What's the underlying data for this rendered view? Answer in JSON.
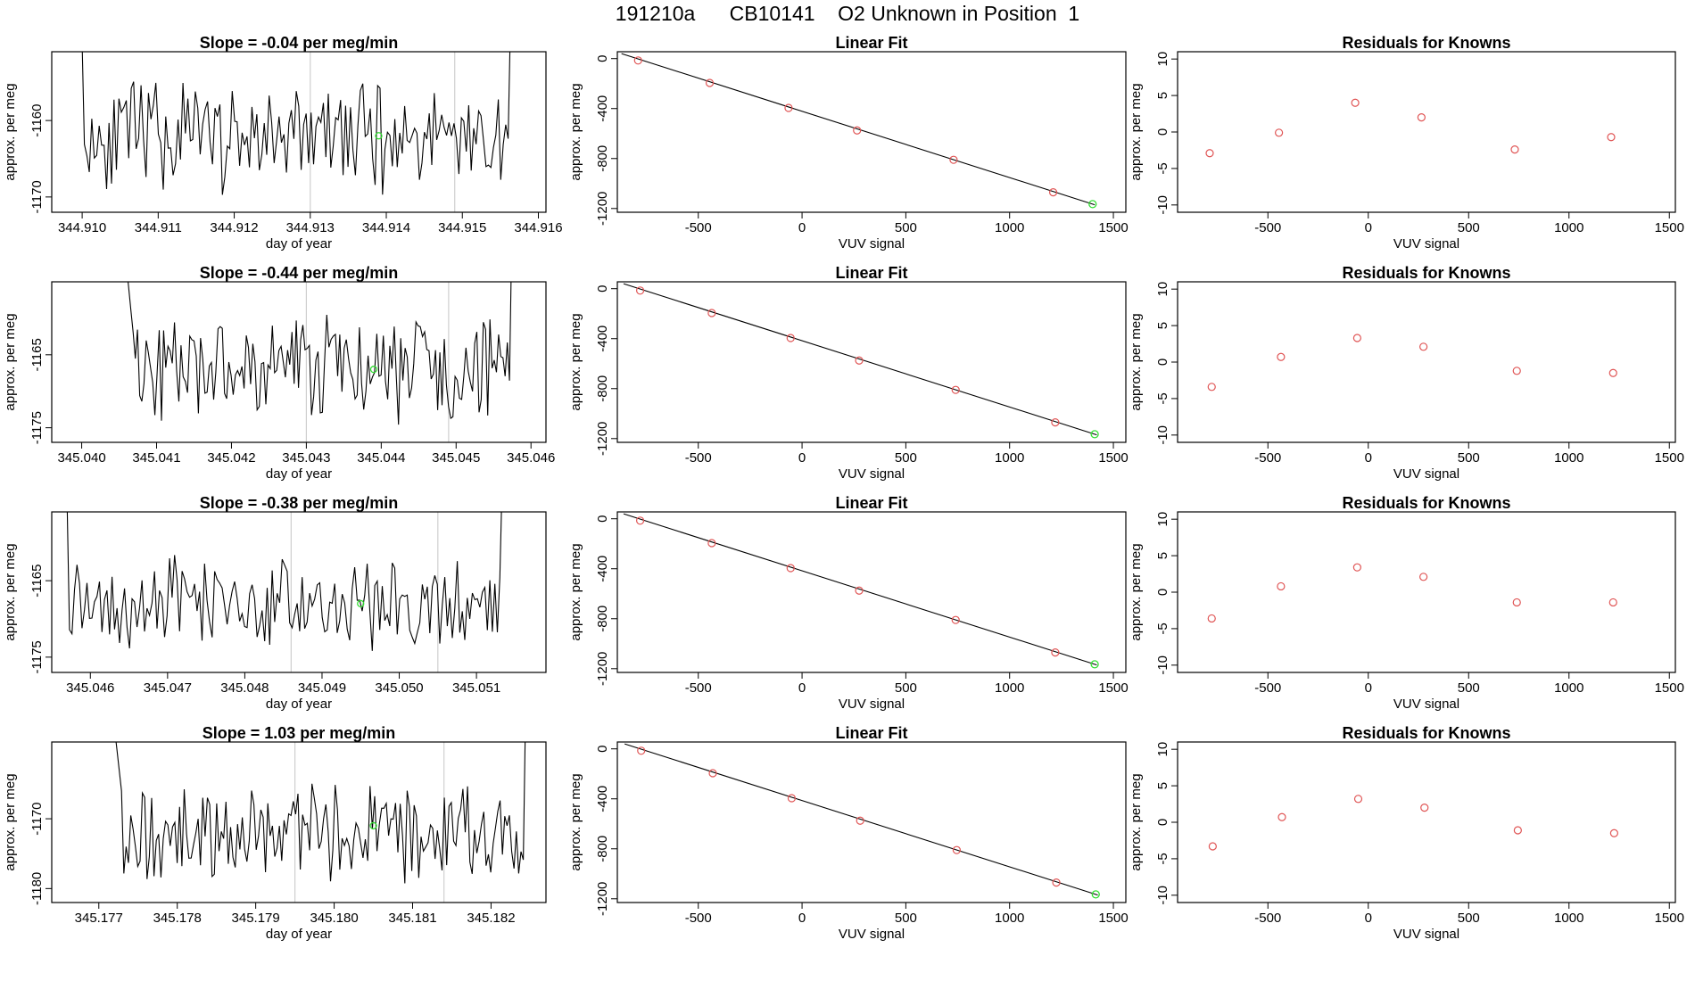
{
  "title": "191210a      CB10141    O2 Unknown in Position  1",
  "colors": {
    "known": "#e05555",
    "unknown": "#33dd33",
    "line": "#000000",
    "marker_line": "#cfcfcf",
    "frame": "#000000"
  },
  "labels": {
    "day_of_year": "day of year",
    "approx_per_meg": "approx. per meg",
    "vuv_signal": "VUV signal",
    "linear_fit": "Linear Fit",
    "residuals": "Residuals for Knowns"
  },
  "chart_data": [
    {
      "type": "line",
      "title": "Slope =  -0.04  per meg/min",
      "xlabel": "day of year",
      "ylabel": "approx. per meg",
      "xlim": [
        344.9096,
        344.9161
      ],
      "ylim": [
        -1172,
        -1151
      ],
      "x_ticks": [
        "344.910",
        "344.911",
        "344.912",
        "344.913",
        "344.914",
        "344.915",
        "344.916"
      ],
      "y_ticks": [
        -1160,
        -1170
      ],
      "x_start": 344.9099,
      "x_end": 344.9157,
      "mean": -1162,
      "amp": 6,
      "seed": 11,
      "markers": [
        344.913,
        344.9149
      ],
      "unknown_point": [
        344.9139,
        -1162
      ]
    },
    {
      "type": "line",
      "title": "Slope =  -0.44  per meg/min",
      "xlabel": "day of year",
      "ylabel": "approx. per meg",
      "xlim": [
        345.0396,
        345.0462
      ],
      "ylim": [
        -1177,
        -1155
      ],
      "x_ticks": [
        "345.040",
        "345.041",
        "345.042",
        "345.043",
        "345.044",
        "345.045",
        "345.046"
      ],
      "y_ticks": [
        -1165,
        -1175
      ],
      "x_start": 345.0406,
      "x_end": 345.0458,
      "mean": -1167,
      "amp": 6,
      "seed": 23,
      "markers": [
        345.043,
        345.0449
      ],
      "unknown_point": [
        345.0439,
        -1167
      ]
    },
    {
      "type": "line",
      "title": "Slope =  -0.38  per meg/min",
      "xlabel": "day of year",
      "ylabel": "approx. per meg",
      "xlim": [
        345.0455,
        345.0519
      ],
      "ylim": [
        -1177,
        -1156
      ],
      "x_ticks": [
        "345.046",
        "345.047",
        "345.048",
        "345.049",
        "345.050",
        "345.051"
      ],
      "y_ticks": [
        -1165,
        -1175
      ],
      "x_start": 345.0456,
      "x_end": 345.0514,
      "mean": -1168,
      "amp": 5,
      "seed": 37,
      "markers": [
        345.0486,
        345.0505
      ],
      "unknown_point": [
        345.0495,
        -1168
      ]
    },
    {
      "type": "line",
      "title": "Slope =  1.03  per meg/min",
      "xlabel": "day of year",
      "ylabel": "approx. per meg",
      "xlim": [
        345.1764,
        345.1827
      ],
      "ylim": [
        -1182,
        -1159
      ],
      "x_ticks": [
        "345.177",
        "345.178",
        "345.179",
        "345.180",
        "345.181",
        "345.182"
      ],
      "y_ticks": [
        -1170,
        -1180
      ],
      "x_start": 345.1772,
      "x_end": 345.1825,
      "mean": -1172,
      "amp": 6,
      "seed": 53,
      "markers": [
        345.1795,
        345.1814
      ],
      "unknown_point": [
        345.1805,
        -1171
      ]
    },
    {
      "type": "scatter",
      "title": "Linear Fit",
      "xlabel": "VUV signal",
      "ylabel": "approx. per meg",
      "xlim": [
        -890,
        1560
      ],
      "ylim": [
        -1230,
        55
      ],
      "x_ticks": [
        -500,
        0,
        500,
        1000,
        1500
      ],
      "y_ticks": [
        0,
        -400,
        -800,
        -1200
      ],
      "known": [
        [
          -790,
          -15
        ],
        [
          -445,
          -195
        ],
        [
          -65,
          -395
        ],
        [
          265,
          -575
        ],
        [
          730,
          -810
        ],
        [
          1210,
          -1070
        ]
      ],
      "unknown": [
        [
          1400,
          -1165
        ]
      ],
      "fit_line": [
        [
          -870,
          40
        ],
        [
          1410,
          -1170
        ]
      ]
    },
    {
      "type": "scatter",
      "title": "Linear Fit",
      "xlabel": "VUV signal",
      "ylabel": "approx. per meg",
      "xlim": [
        -890,
        1560
      ],
      "ylim": [
        -1230,
        55
      ],
      "x_ticks": [
        -500,
        0,
        500,
        1000,
        1500
      ],
      "y_ticks": [
        0,
        -400,
        -800,
        -1200
      ],
      "known": [
        [
          -780,
          -15
        ],
        [
          -435,
          -195
        ],
        [
          -55,
          -395
        ],
        [
          275,
          -575
        ],
        [
          740,
          -810
        ],
        [
          1220,
          -1070
        ]
      ],
      "unknown": [
        [
          1410,
          -1165
        ]
      ],
      "fit_line": [
        [
          -860,
          40
        ],
        [
          1420,
          -1170
        ]
      ]
    },
    {
      "type": "scatter",
      "title": "Linear Fit",
      "xlabel": "VUV signal",
      "ylabel": "approx. per meg",
      "xlim": [
        -890,
        1560
      ],
      "ylim": [
        -1230,
        55
      ],
      "x_ticks": [
        -500,
        0,
        500,
        1000,
        1500
      ],
      "y_ticks": [
        0,
        -400,
        -800,
        -1200
      ],
      "known": [
        [
          -780,
          -15
        ],
        [
          -435,
          -195
        ],
        [
          -55,
          -395
        ],
        [
          275,
          -575
        ],
        [
          740,
          -810
        ],
        [
          1220,
          -1070
        ]
      ],
      "unknown": [
        [
          1410,
          -1165
        ]
      ],
      "fit_line": [
        [
          -860,
          40
        ],
        [
          1420,
          -1170
        ]
      ]
    },
    {
      "type": "scatter",
      "title": "Linear Fit",
      "xlabel": "VUV signal",
      "ylabel": "approx. per meg",
      "xlim": [
        -890,
        1560
      ],
      "ylim": [
        -1230,
        55
      ],
      "x_ticks": [
        -500,
        0,
        500,
        1000,
        1500
      ],
      "y_ticks": [
        0,
        -400,
        -800,
        -1200
      ],
      "known": [
        [
          -775,
          -15
        ],
        [
          -430,
          -195
        ],
        [
          -50,
          -395
        ],
        [
          280,
          -575
        ],
        [
          745,
          -810
        ],
        [
          1225,
          -1070
        ]
      ],
      "unknown": [
        [
          1415,
          -1165
        ]
      ],
      "fit_line": [
        [
          -855,
          40
        ],
        [
          1425,
          -1170
        ]
      ]
    },
    {
      "type": "scatter",
      "title": "Residuals for Knowns",
      "xlabel": "VUV signal",
      "ylabel": "approx. per meg",
      "xlim": [
        -950,
        1530
      ],
      "ylim": [
        -11,
        11
      ],
      "x_ticks": [
        -500,
        0,
        500,
        1000,
        1500
      ],
      "y_ticks": [
        10,
        5,
        0,
        -5,
        -10
      ],
      "known": [
        [
          -790,
          -2.9
        ],
        [
          -445,
          -0.1
        ],
        [
          -65,
          4.0
        ],
        [
          265,
          2.0
        ],
        [
          730,
          -2.4
        ],
        [
          1210,
          -0.7
        ]
      ]
    },
    {
      "type": "scatter",
      "title": "Residuals for Knowns",
      "xlabel": "VUV signal",
      "ylabel": "approx. per meg",
      "xlim": [
        -950,
        1530
      ],
      "ylim": [
        -11,
        11
      ],
      "x_ticks": [
        -500,
        0,
        500,
        1000,
        1500
      ],
      "y_ticks": [
        10,
        5,
        0,
        -5,
        -10
      ],
      "known": [
        [
          -780,
          -3.4
        ],
        [
          -435,
          0.7
        ],
        [
          -55,
          3.3
        ],
        [
          275,
          2.1
        ],
        [
          740,
          -1.2
        ],
        [
          1220,
          -1.5
        ]
      ]
    },
    {
      "type": "scatter",
      "title": "Residuals for Knowns",
      "xlabel": "VUV signal",
      "ylabel": "approx. per meg",
      "xlim": [
        -950,
        1530
      ],
      "ylim": [
        -11,
        11
      ],
      "x_ticks": [
        -500,
        0,
        500,
        1000,
        1500
      ],
      "y_ticks": [
        10,
        5,
        0,
        -5,
        -10
      ],
      "known": [
        [
          -780,
          -3.6
        ],
        [
          -435,
          0.8
        ],
        [
          -55,
          3.4
        ],
        [
          275,
          2.1
        ],
        [
          740,
          -1.4
        ],
        [
          1220,
          -1.4
        ]
      ]
    },
    {
      "type": "scatter",
      "title": "Residuals for Knowns",
      "xlabel": "VUV signal",
      "ylabel": "approx. per meg",
      "xlim": [
        -950,
        1530
      ],
      "ylim": [
        -11,
        11
      ],
      "x_ticks": [
        -500,
        0,
        500,
        1000,
        1500
      ],
      "y_ticks": [
        10,
        5,
        0,
        -5,
        -10
      ],
      "known": [
        [
          -775,
          -3.3
        ],
        [
          -430,
          0.7
        ],
        [
          -50,
          3.2
        ],
        [
          280,
          2.0
        ],
        [
          745,
          -1.1
        ],
        [
          1225,
          -1.5
        ]
      ]
    }
  ]
}
